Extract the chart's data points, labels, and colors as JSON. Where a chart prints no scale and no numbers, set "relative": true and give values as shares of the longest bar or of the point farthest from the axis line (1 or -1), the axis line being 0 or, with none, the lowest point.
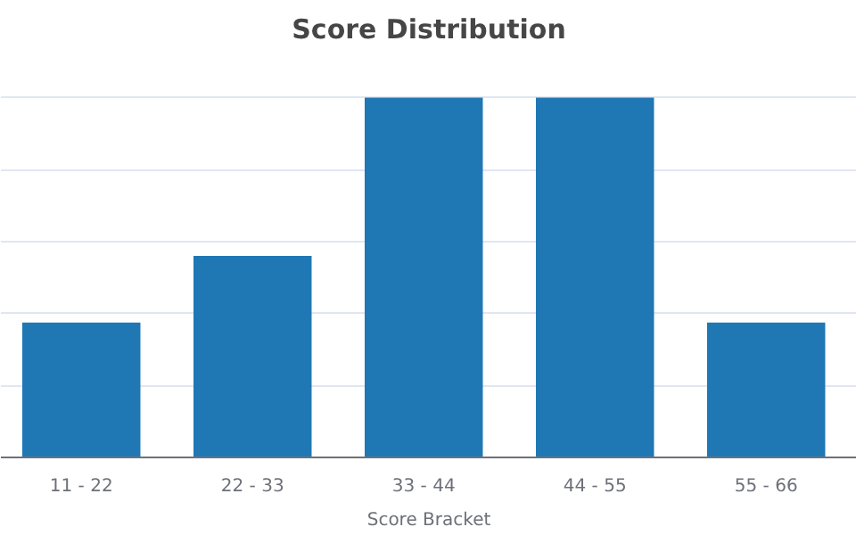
{
  "chart_data": {
    "type": "bar",
    "title": "Score Distribution",
    "xlabel": "Score Bracket",
    "categories": [
      "11 - 22",
      "22 - 33",
      "33 - 44",
      "44 - 55",
      "55 - 66"
    ],
    "values": [
      0.375,
      0.56,
      1,
      1,
      0.375
    ],
    "color": "#1f77b4",
    "relative": true,
    "grid": "y"
  }
}
